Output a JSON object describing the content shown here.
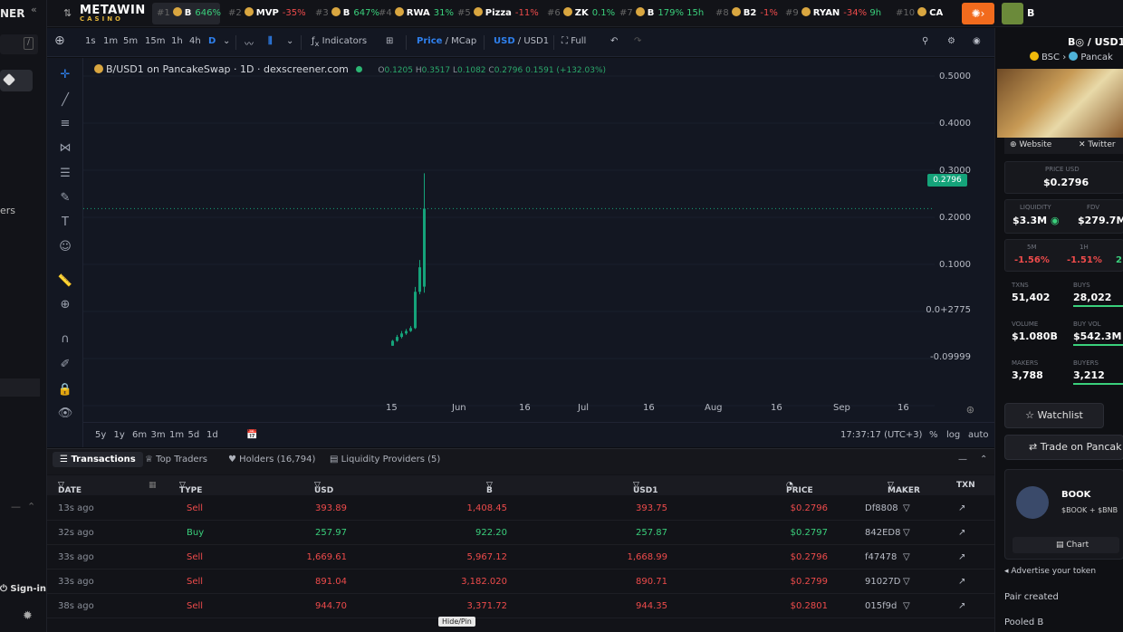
{
  "sidebar": {
    "brand": "NER",
    "menu_label": "ers",
    "sign_in": "Sign-in"
  },
  "ticker": {
    "logo": "METAWIN",
    "logo_sub": "CASINO",
    "items": [
      {
        "rank": "#1",
        "symbol": "B",
        "change": "646%",
        "dir": "up"
      },
      {
        "rank": "#2",
        "symbol": "MVP",
        "change": "-35%",
        "dir": "dn"
      },
      {
        "rank": "#3",
        "symbol": "B",
        "change": "647%",
        "dir": "up"
      },
      {
        "rank": "#4",
        "symbol": "RWA",
        "change": "31%",
        "dir": "up"
      },
      {
        "rank": "#5",
        "symbol": "Pizza",
        "change": "-11%",
        "dir": "dn"
      },
      {
        "rank": "#6",
        "symbol": "ZK",
        "change": "0.1%",
        "dir": "up"
      },
      {
        "rank": "#7",
        "symbol": "B",
        "change": "179%",
        "extra": "15h",
        "dir": "up"
      },
      {
        "rank": "#8",
        "symbol": "B2",
        "change": "-1%",
        "dir": "dn"
      },
      {
        "rank": "#9",
        "symbol": "RYAN",
        "change": "-34%",
        "extra": "9h",
        "dir": "dn"
      },
      {
        "rank": "#10",
        "symbol": "CA",
        "change": "",
        "dir": "up"
      }
    ],
    "account_symbol": "B"
  },
  "toolbar": {
    "timeframes": [
      "1s",
      "1m",
      "5m",
      "15m",
      "1h",
      "4h",
      "D"
    ],
    "indicators": "Indicators",
    "price": "Price",
    "mcap": "MCap",
    "usd": "USD",
    "usd1": "USD1",
    "full": "Full"
  },
  "chart": {
    "legend_title": "B/USD1 on PancakeSwap · 1D · dexscreener.com",
    "ohlc": {
      "o": "0.1205",
      "h": "0.3517",
      "l": "0.1082",
      "c": "0.2796",
      "chg": "0.1591 (+132.03%)"
    },
    "price_tag": "0.2796",
    "time": "17:37:17 (UTC+3)",
    "ranges": [
      "5y",
      "1y",
      "6m",
      "3m",
      "1m",
      "5d",
      "1d"
    ],
    "scale_opts": [
      "%",
      "log",
      "auto"
    ]
  },
  "chart_data": {
    "type": "bar",
    "y_ticks": [
      "0.5000",
      "0.4000",
      "0.3000",
      "0.2000",
      "0.1000",
      "0.0+2775",
      "-0.09999"
    ],
    "x_ticks": [
      "15",
      "Jun",
      "16",
      "Jul",
      "16",
      "Aug",
      "16",
      "Sep",
      "16"
    ],
    "ylim": [
      -0.1,
      0.55
    ],
    "current_price": 0.2796,
    "candles": [
      {
        "o": 0.0,
        "h": 0.012,
        "l": 0.0,
        "c": 0.01
      },
      {
        "o": 0.01,
        "h": 0.022,
        "l": 0.008,
        "c": 0.018
      },
      {
        "o": 0.018,
        "h": 0.03,
        "l": 0.015,
        "c": 0.025
      },
      {
        "o": 0.025,
        "h": 0.034,
        "l": 0.022,
        "c": 0.03
      },
      {
        "o": 0.03,
        "h": 0.04,
        "l": 0.028,
        "c": 0.036
      },
      {
        "o": 0.036,
        "h": 0.12,
        "l": 0.034,
        "c": 0.11
      },
      {
        "o": 0.11,
        "h": 0.175,
        "l": 0.105,
        "c": 0.16
      },
      {
        "o": 0.1205,
        "h": 0.3517,
        "l": 0.1082,
        "c": 0.2796
      }
    ]
  },
  "tx": {
    "tabs": [
      "Transactions",
      "Top Traders",
      "Holders (16,794)",
      "Liquidity Providers (5)"
    ],
    "headers": [
      "DATE",
      "TYPE",
      "USD",
      "B",
      "USD1",
      "PRICE",
      "MAKER",
      "TXN"
    ],
    "rows": [
      {
        "date": "13s ago",
        "type": "Sell",
        "usd": "393.89",
        "b": "1,408.45",
        "usd1": "393.75",
        "price": "$0.2796",
        "maker": "Df8808"
      },
      {
        "date": "32s ago",
        "type": "Buy",
        "usd": "257.97",
        "b": "922.20",
        "usd1": "257.87",
        "price": "$0.2797",
        "maker": "842ED8"
      },
      {
        "date": "33s ago",
        "type": "Sell",
        "usd": "1,669.61",
        "b": "5,967.12",
        "usd1": "1,668.99",
        "price": "$0.2796",
        "maker": "f47478"
      },
      {
        "date": "33s ago",
        "type": "Sell",
        "usd": "891.04",
        "b": "3,182.020",
        "usd1": "890.71",
        "price": "$0.2799",
        "maker": "91027D"
      },
      {
        "date": "38s ago",
        "type": "Sell",
        "usd": "944.70",
        "b": "3,371.72",
        "usd1": "944.35",
        "price": "$0.2801",
        "maker": "015f9d"
      }
    ],
    "tooltip": "Hide/Pin"
  },
  "right": {
    "pair": "B◎ / USD1",
    "chain": "BSC",
    "dex": "Pancak",
    "website": "Website",
    "twitter": "Twitter",
    "price_usd_label": "PRICE USD",
    "price_usd": "$0.2796",
    "liquidity_label": "LIQUIDITY",
    "liquidity": "$3.3M",
    "fdv_label": "FDV",
    "fdv": "$279.7M",
    "m5_label": "5M",
    "m5": "-1.56%",
    "h1_label": "1H",
    "h1": "-1.51%",
    "h6_value": "2",
    "txns_label": "TXNS",
    "txns": "51,402",
    "buys_label": "BUYS",
    "buys": "28,022",
    "volume_label": "VOLUME",
    "volume": "$1.080B",
    "buyvol_label": "BUY VOL",
    "buyvol": "$542.3M",
    "makers_label": "MAKERS",
    "makers": "3,788",
    "buyers_label": "BUYERS",
    "buyers": "3,212",
    "watchlist": "Watchlist",
    "trade": "Trade on Pancak",
    "promo_name": "BOOK",
    "promo_pair": "$BOOK + $BNB",
    "promo_chart": "Chart",
    "advertise": "Advertise your token",
    "pair_created": "Pair created",
    "pooled": "Pooled B"
  },
  "colors": {
    "up": "#3ad07c",
    "down": "#ee4b4b",
    "accent": "#2f80ed",
    "candle": "#15a37a"
  }
}
